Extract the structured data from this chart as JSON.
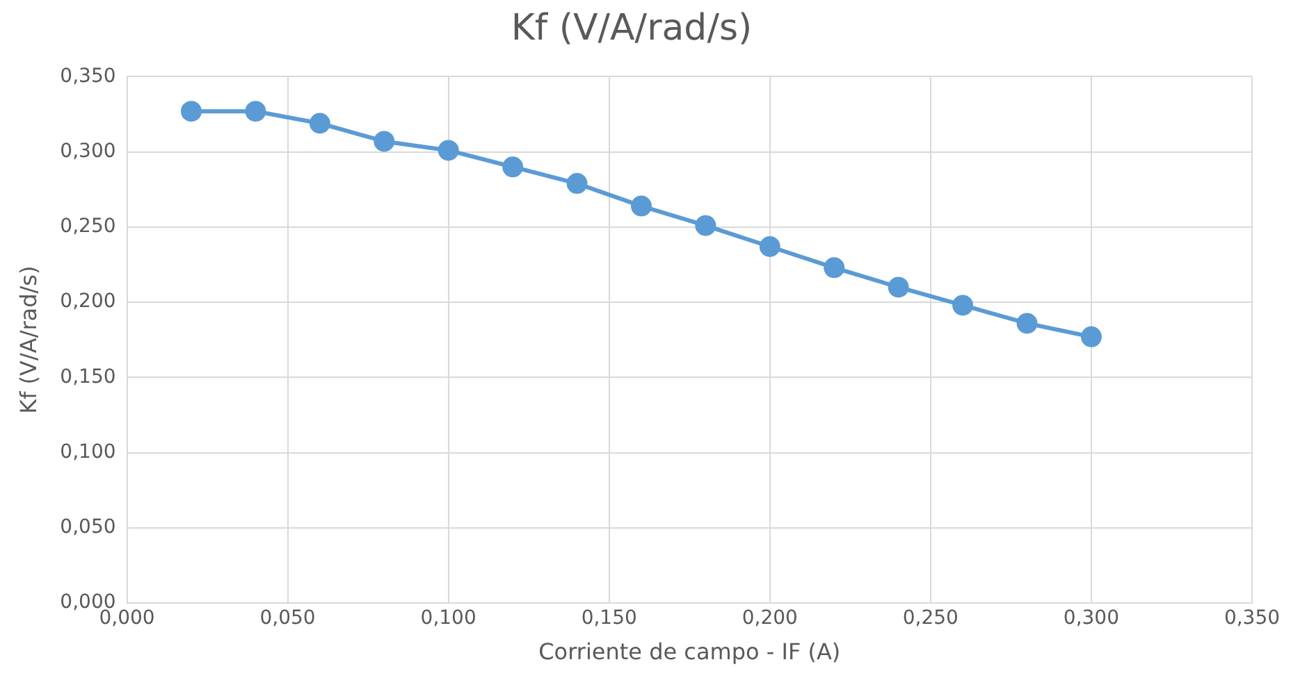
{
  "chart_data": {
    "type": "line",
    "title": "Kf (V/A/rad/s)",
    "xlabel": "Corriente de campo - IF (A)",
    "ylabel": "Kf (V/A/rad/s)",
    "x": [
      0.02,
      0.04,
      0.06,
      0.08,
      0.1,
      0.12,
      0.14,
      0.16,
      0.18,
      0.2,
      0.22,
      0.24,
      0.26,
      0.28,
      0.3
    ],
    "series": [
      {
        "color": "#5b9bd5",
        "values": [
          0.327,
          0.327,
          0.319,
          0.307,
          0.301,
          0.29,
          0.279,
          0.264,
          0.251,
          0.237,
          0.223,
          0.21,
          0.198,
          0.186,
          0.177
        ]
      }
    ],
    "xlim": [
      0,
      0.35
    ],
    "xticks": [
      {
        "value": 0,
        "label": "0,000"
      },
      {
        "value": 0.05,
        "label": "0,050"
      },
      {
        "value": 0.1,
        "label": "0,100"
      },
      {
        "value": 0.15,
        "label": "0,150"
      },
      {
        "value": 0.2,
        "label": "0,200"
      },
      {
        "value": 0.25,
        "label": "0,250"
      },
      {
        "value": 0.3,
        "label": "0,300"
      },
      {
        "value": 0.35,
        "label": "0,350"
      }
    ],
    "ylim": [
      0,
      0.35
    ],
    "yticks": [
      {
        "value": 0,
        "label": "0,000"
      },
      {
        "value": 0.05,
        "label": "0,050"
      },
      {
        "value": 0.1,
        "label": "0,100"
      },
      {
        "value": 0.15,
        "label": "0,150"
      },
      {
        "value": 0.2,
        "label": "0,200"
      },
      {
        "value": 0.25,
        "label": "0,250"
      },
      {
        "value": 0.3,
        "label": "0,300"
      },
      {
        "value": 0.35,
        "label": "0,350"
      }
    ],
    "grid": true,
    "legend": false,
    "marker": "circle",
    "line_style": "solid"
  }
}
